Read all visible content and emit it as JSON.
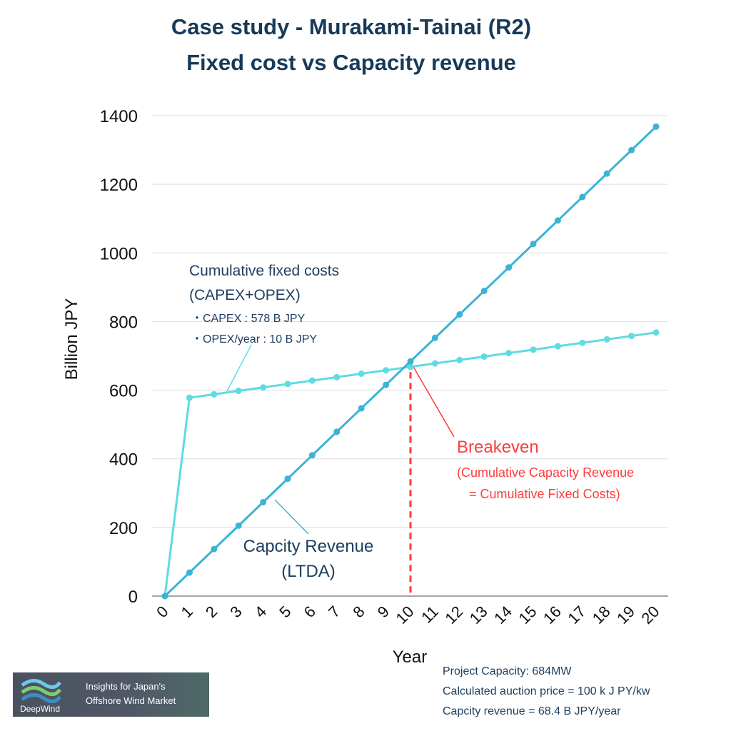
{
  "title_line1": "Case study - Murakami-Tainai (R2)",
  "title_line2": "Fixed cost vs Capacity revenue",
  "chart_data": {
    "type": "line",
    "xlabel": "Year",
    "ylabel": "Billion JPY",
    "x": [
      0,
      1,
      2,
      3,
      4,
      5,
      6,
      7,
      8,
      9,
      10,
      11,
      12,
      13,
      14,
      15,
      16,
      17,
      18,
      19,
      20
    ],
    "xlim": [
      0,
      20
    ],
    "ylim": [
      0,
      1400
    ],
    "yticks": [
      0,
      200,
      400,
      600,
      800,
      1000,
      1200,
      1400
    ],
    "grid": true,
    "series": [
      {
        "name": "Cumulative fixed costs (CAPEX+OPEX)",
        "color": "#5fdbe2",
        "values": [
          0,
          578,
          588,
          598,
          608,
          618,
          628,
          638,
          648,
          658,
          668,
          678,
          688,
          698,
          708,
          718,
          728,
          738,
          748,
          758,
          768
        ]
      },
      {
        "name": "Capcity Revenue (LTDA)",
        "color": "#3bb3d5",
        "values": [
          0,
          68.4,
          136.8,
          205.2,
          273.6,
          342,
          410.4,
          478.8,
          547.2,
          615.6,
          684,
          752.4,
          820.8,
          889.2,
          957.6,
          1026,
          1094.4,
          1162.8,
          1231.2,
          1299.6,
          1368
        ]
      }
    ],
    "breakeven_x": 10,
    "annotations": {
      "fixed_label1": "Cumulative fixed costs",
      "fixed_label2": "(CAPEX+OPEX)",
      "capex": "・CAPEX : 578 B JPY",
      "opex": "・OPEX/year : 10 B JPY",
      "rev_label1": "Capcity Revenue",
      "rev_label2": "(LTDA)",
      "breakeven": "Breakeven",
      "breakeven_sub1": "(Cumulative Capacity Revenue",
      "breakeven_sub2": "= Cumulative Fixed Costs)"
    },
    "breakeven_color": "#ff3b3b"
  },
  "notes": {
    "capacity": "Project Capacity: 684MW",
    "price": "Calculated auction price = 100 k J PY/kw",
    "revenue": "Capcity revenue = 68.4 B JPY/year"
  },
  "logo": {
    "brand": "DeepWind",
    "line1": "Insights for Japan's",
    "line2": "Offshore Wind Market"
  }
}
